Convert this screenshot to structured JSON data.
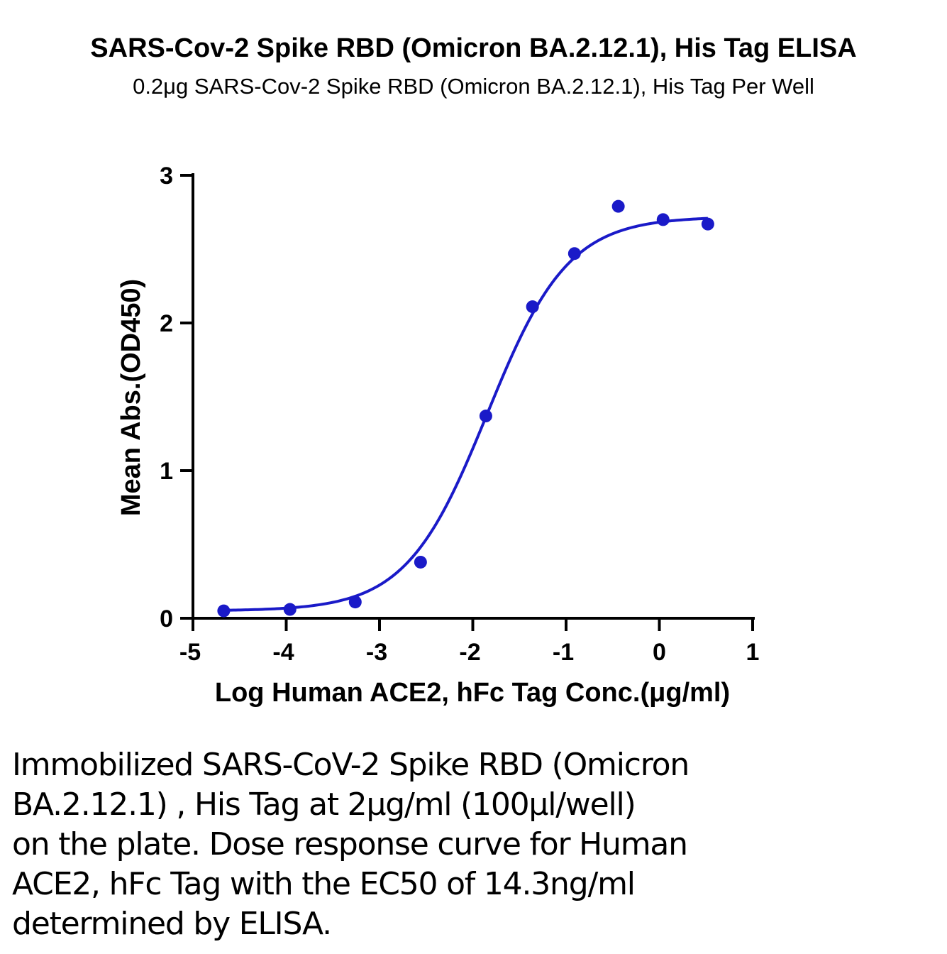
{
  "title": "SARS-Cov-2 Spike RBD (Omicron BA.2.12.1), His Tag ELISA",
  "subtitle": "0.2μg SARS-Cov-2 Spike RBD (Omicron BA.2.12.1), His Tag Per Well",
  "caption": {
    "lines": [
      "Immobilized SARS-CoV-2 Spike RBD (Omicron",
      "BA.2.12.1) , His Tag at 2μg/ml (100μl/well)",
      "on the plate. Dose response curve for Human",
      "ACE2, hFc Tag with the EC50 of 14.3ng/ml",
      "determined by ELISA."
    ]
  },
  "colors": {
    "series": "#1a1ac8",
    "axis": "#000000"
  },
  "chart_data": {
    "type": "scatter",
    "xlabel": "Log Human ACE2, hFc Tag Conc.(μg/ml)",
    "ylabel": "Mean Abs.(OD450)",
    "xlim": [
      -5,
      1
    ],
    "ylim": [
      0,
      3
    ],
    "xticks": [
      "-5",
      "-4",
      "-3",
      "-2",
      "-1",
      "0",
      "1"
    ],
    "yticks": [
      "0",
      "1",
      "2",
      "3"
    ],
    "grid": false,
    "legend": "none",
    "series": [
      {
        "x": [
          -4.67,
          -3.96,
          -3.26,
          -2.56,
          -1.86,
          -1.36,
          -0.91,
          -0.44,
          0.04,
          0.52
        ],
        "y": [
          0.05,
          0.06,
          0.11,
          0.38,
          1.37,
          2.11,
          2.47,
          2.79,
          2.7,
          2.67
        ]
      }
    ],
    "fit": {
      "model": "4PL",
      "bottom": 0.05,
      "top": 2.72,
      "log_ec50": -1.845,
      "hill_slope": 1.0,
      "x_range": [
        -4.67,
        0.52
      ]
    },
    "ec50": "14.3ng/ml"
  }
}
